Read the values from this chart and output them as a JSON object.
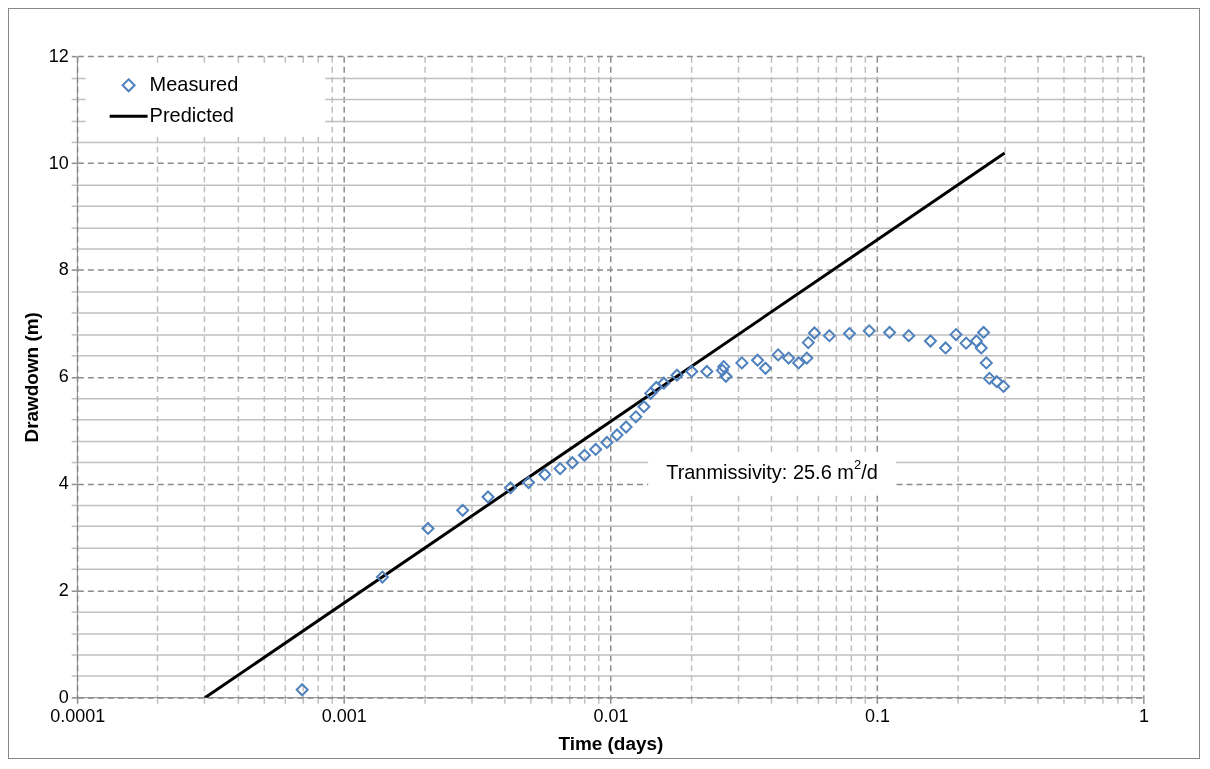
{
  "chart_data": {
    "type": "scatter",
    "xlabel": "Time (days)",
    "ylabel": "Drawdown (m)",
    "log": "x",
    "grid": true,
    "legend": "top left",
    "xlim": [
      0.0001,
      1
    ],
    "ylim": [
      0,
      12
    ],
    "xticks": [
      0.0001,
      {
        "value": 0.0002,
        "label": null
      },
      {
        "value": 0.0003,
        "label": null
      },
      {
        "value": 0.0004,
        "label": null
      },
      {
        "value": 0.0005,
        "label": null
      },
      {
        "value": 0.0006,
        "label": null
      },
      {
        "value": 0.0007,
        "label": null
      },
      {
        "value": 0.0008,
        "label": null
      },
      {
        "value": 0.0009,
        "label": null
      },
      0.001,
      {
        "value": 0.002,
        "label": null
      },
      {
        "value": 0.003,
        "label": null
      },
      {
        "value": 0.004,
        "label": null
      },
      {
        "value": 0.005,
        "label": null
      },
      {
        "value": 0.006,
        "label": null
      },
      {
        "value": 0.007,
        "label": null
      },
      {
        "value": 0.008,
        "label": null
      },
      {
        "value": 0.009,
        "label": null
      },
      0.01,
      {
        "value": 0.02,
        "label": null
      },
      {
        "value": 0.03,
        "label": null
      },
      {
        "value": 0.04,
        "label": null
      },
      {
        "value": 0.05,
        "label": null
      },
      {
        "value": 0.06,
        "label": null
      },
      {
        "value": 0.07,
        "label": null
      },
      {
        "value": 0.08,
        "label": null
      },
      {
        "value": 0.09,
        "label": null
      },
      0.1,
      {
        "value": 0.2,
        "label": null
      },
      {
        "value": 0.3,
        "label": null
      },
      {
        "value": 0.4,
        "label": null
      },
      {
        "value": 0.5,
        "label": null
      },
      {
        "value": 0.6,
        "label": null
      },
      {
        "value": 0.7,
        "label": null
      },
      {
        "value": 0.8,
        "label": null
      },
      {
        "value": 0.9,
        "label": null
      },
      1
    ],
    "yticks": [
      0,
      {
        "value": 0.4,
        "label": null
      },
      {
        "value": 0.8,
        "label": null
      },
      {
        "value": 1.2,
        "label": null
      },
      {
        "value": 1.6,
        "label": null
      },
      2,
      {
        "value": 2.4,
        "label": null
      },
      {
        "value": 2.8,
        "label": null
      },
      {
        "value": 3.2,
        "label": null
      },
      {
        "value": 3.6,
        "label": null
      },
      4,
      {
        "value": 4.4,
        "label": null
      },
      {
        "value": 4.8,
        "label": null
      },
      {
        "value": 5.2,
        "label": null
      },
      {
        "value": 5.6,
        "label": null
      },
      6,
      {
        "value": 6.4,
        "label": null
      },
      {
        "value": 6.8,
        "label": null
      },
      {
        "value": 7.2,
        "label": null
      },
      {
        "value": 7.6,
        "label": null
      },
      8,
      {
        "value": 8.4,
        "label": null
      },
      {
        "value": 8.8,
        "label": null
      },
      {
        "value": 9.2,
        "label": null
      },
      {
        "value": 9.6,
        "label": null
      },
      10,
      {
        "value": 10.4,
        "label": null
      },
      {
        "value": 10.8,
        "label": null
      },
      {
        "value": 11.2,
        "label": null
      },
      {
        "value": 11.6,
        "label": null
      },
      12
    ],
    "annotations": [
      "Tranmissivity: 25.6 m$^{2}$/d"
    ],
    "series": [
      {
        "name": "Measured",
        "marker": "diamond",
        "color": "#4f81bd",
        "x": [
          0.000695,
          0.00139,
          0.00206,
          0.00278,
          0.00346,
          0.0042,
          0.00491,
          0.00565,
          0.00645,
          0.00717,
          0.00796,
          0.00877,
          0.00966,
          0.01054,
          0.0114,
          0.0124,
          0.0133,
          0.0141,
          0.0148,
          0.0158,
          0.0177,
          0.0201,
          0.0229,
          0.0262,
          0.0265,
          0.027,
          0.031,
          0.0355,
          0.038,
          0.0424,
          0.0464,
          0.0506,
          0.0543,
          0.055,
          0.058,
          0.066,
          0.0785,
          0.0931,
          0.111,
          0.131,
          0.158,
          0.18,
          0.197,
          0.215,
          0.235,
          0.245,
          0.25,
          0.256,
          0.263,
          0.28,
          0.297
        ],
        "values": [
          0.15,
          2.26,
          3.17,
          3.51,
          3.76,
          3.93,
          4.03,
          4.18,
          4.29,
          4.4,
          4.54,
          4.65,
          4.78,
          4.92,
          5.07,
          5.26,
          5.45,
          5.7,
          5.81,
          5.89,
          6.04,
          6.11,
          6.11,
          6.13,
          6.2,
          6.02,
          6.27,
          6.32,
          6.17,
          6.42,
          6.36,
          6.27,
          6.36,
          6.65,
          6.83,
          6.78,
          6.82,
          6.87,
          6.84,
          6.78,
          6.68,
          6.55,
          6.8,
          6.64,
          6.68,
          6.55,
          6.84,
          6.27,
          5.98,
          5.92,
          5.83
        ]
      },
      {
        "name": "Predicted",
        "type": "line",
        "marker": "none",
        "color": "#000000",
        "x": [
          0.0003,
          0.3
        ],
        "values": [
          0,
          10.2
        ]
      }
    ]
  }
}
